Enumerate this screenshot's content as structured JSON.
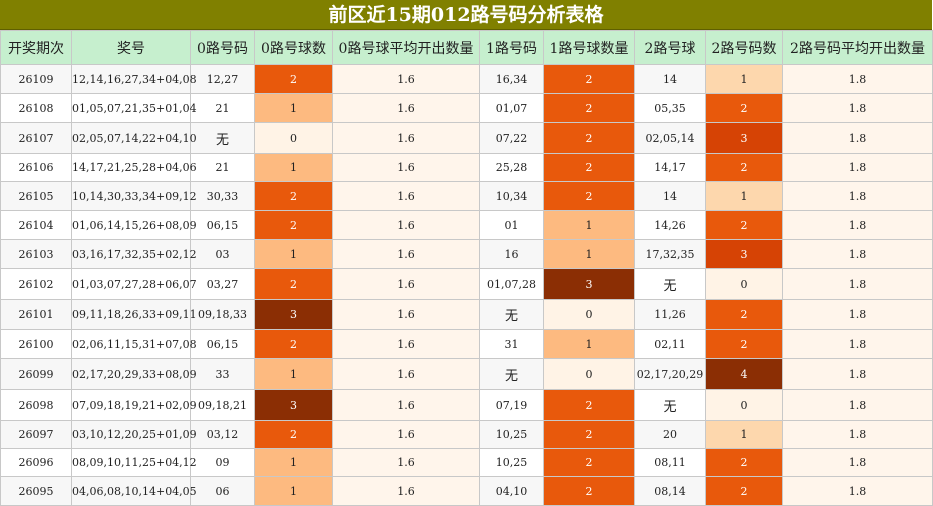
{
  "title": "前区近15期012路号码分析表格",
  "headers": [
    "开奖期次",
    "奖号",
    "0路号码",
    "0路号球数",
    "0路号球平均开出数量",
    "1路号码",
    "1路号球数量",
    "2路号球",
    "2路号码数",
    "2路号码平均开出数量"
  ],
  "colors": {
    "c0": "#fff3e6",
    "c1": "#fdba80",
    "c2": "#e8590c",
    "c3": "#d64305",
    "c4": "#8b2e04",
    "c1_light": "#fdd7ad",
    "row_odd": "#f7f7f7",
    "row_even": "#ffffff",
    "avg_bg": "#fff5eb"
  },
  "rows": [
    {
      "period": "26109",
      "numbers": "12,14,16,27,34+04,08",
      "r0": "12,27",
      "c0": "2",
      "avg0": "1.6",
      "r1": "16,34",
      "c1": "2",
      "r2": "14",
      "c2": "1",
      "avg2": "1.8"
    },
    {
      "period": "26108",
      "numbers": "01,05,07,21,35+01,04",
      "r0": "21",
      "c0": "1",
      "avg0": "1.6",
      "r1": "01,07",
      "c1": "2",
      "r2": "05,35",
      "c2": "2",
      "avg2": "1.8"
    },
    {
      "period": "26107",
      "numbers": "02,05,07,14,22+04,10",
      "r0": "无",
      "c0": "0",
      "avg0": "1.6",
      "r1": "07,22",
      "c1": "2",
      "r2": "02,05,14",
      "c2": "3",
      "avg2": "1.8"
    },
    {
      "period": "26106",
      "numbers": "14,17,21,25,28+04,06",
      "r0": "21",
      "c0": "1",
      "avg0": "1.6",
      "r1": "25,28",
      "c1": "2",
      "r2": "14,17",
      "c2": "2",
      "avg2": "1.8"
    },
    {
      "period": "26105",
      "numbers": "10,14,30,33,34+09,12",
      "r0": "30,33",
      "c0": "2",
      "avg0": "1.6",
      "r1": "10,34",
      "c1": "2",
      "r2": "14",
      "c2": "1",
      "avg2": "1.8"
    },
    {
      "period": "26104",
      "numbers": "01,06,14,15,26+08,09",
      "r0": "06,15",
      "c0": "2",
      "avg0": "1.6",
      "r1": "01",
      "c1": "1",
      "r2": "14,26",
      "c2": "2",
      "avg2": "1.8"
    },
    {
      "period": "26103",
      "numbers": "03,16,17,32,35+02,12",
      "r0": "03",
      "c0": "1",
      "avg0": "1.6",
      "r1": "16",
      "c1": "1",
      "r2": "17,32,35",
      "c2": "3",
      "avg2": "1.8"
    },
    {
      "period": "26102",
      "numbers": "01,03,07,27,28+06,07",
      "r0": "03,27",
      "c0": "2",
      "avg0": "1.6",
      "r1": "01,07,28",
      "c1": "3",
      "r2": "无",
      "c2": "0",
      "avg2": "1.8"
    },
    {
      "period": "26101",
      "numbers": "09,11,18,26,33+09,11",
      "r0": "09,18,33",
      "c0": "3",
      "avg0": "1.6",
      "r1": "无",
      "c1": "0",
      "r2": "11,26",
      "c2": "2",
      "avg2": "1.8"
    },
    {
      "period": "26100",
      "numbers": "02,06,11,15,31+07,08",
      "r0": "06,15",
      "c0": "2",
      "avg0": "1.6",
      "r1": "31",
      "c1": "1",
      "r2": "02,11",
      "c2": "2",
      "avg2": "1.8"
    },
    {
      "period": "26099",
      "numbers": "02,17,20,29,33+08,09",
      "r0": "33",
      "c0": "1",
      "avg0": "1.6",
      "r1": "无",
      "c1": "0",
      "r2": "02,17,20,29",
      "c2": "4",
      "avg2": "1.8"
    },
    {
      "period": "26098",
      "numbers": "07,09,18,19,21+02,09",
      "r0": "09,18,21",
      "c0": "3",
      "avg0": "1.6",
      "r1": "07,19",
      "c1": "2",
      "r2": "无",
      "c2": "0",
      "avg2": "1.8"
    },
    {
      "period": "26097",
      "numbers": "03,10,12,20,25+01,09",
      "r0": "03,12",
      "c0": "2",
      "avg0": "1.6",
      "r1": "10,25",
      "c1": "2",
      "r2": "20",
      "c2": "1",
      "avg2": "1.8"
    },
    {
      "period": "26096",
      "numbers": "08,09,10,11,25+04,12",
      "r0": "09",
      "c0": "1",
      "avg0": "1.6",
      "r1": "10,25",
      "c1": "2",
      "r2": "08,11",
      "c2": "2",
      "avg2": "1.8"
    },
    {
      "period": "26095",
      "numbers": "04,06,08,10,14+04,05",
      "r0": "06",
      "c0": "1",
      "avg0": "1.6",
      "r1": "04,10",
      "c1": "2",
      "r2": "08,14",
      "c2": "2",
      "avg2": "1.8"
    }
  ]
}
